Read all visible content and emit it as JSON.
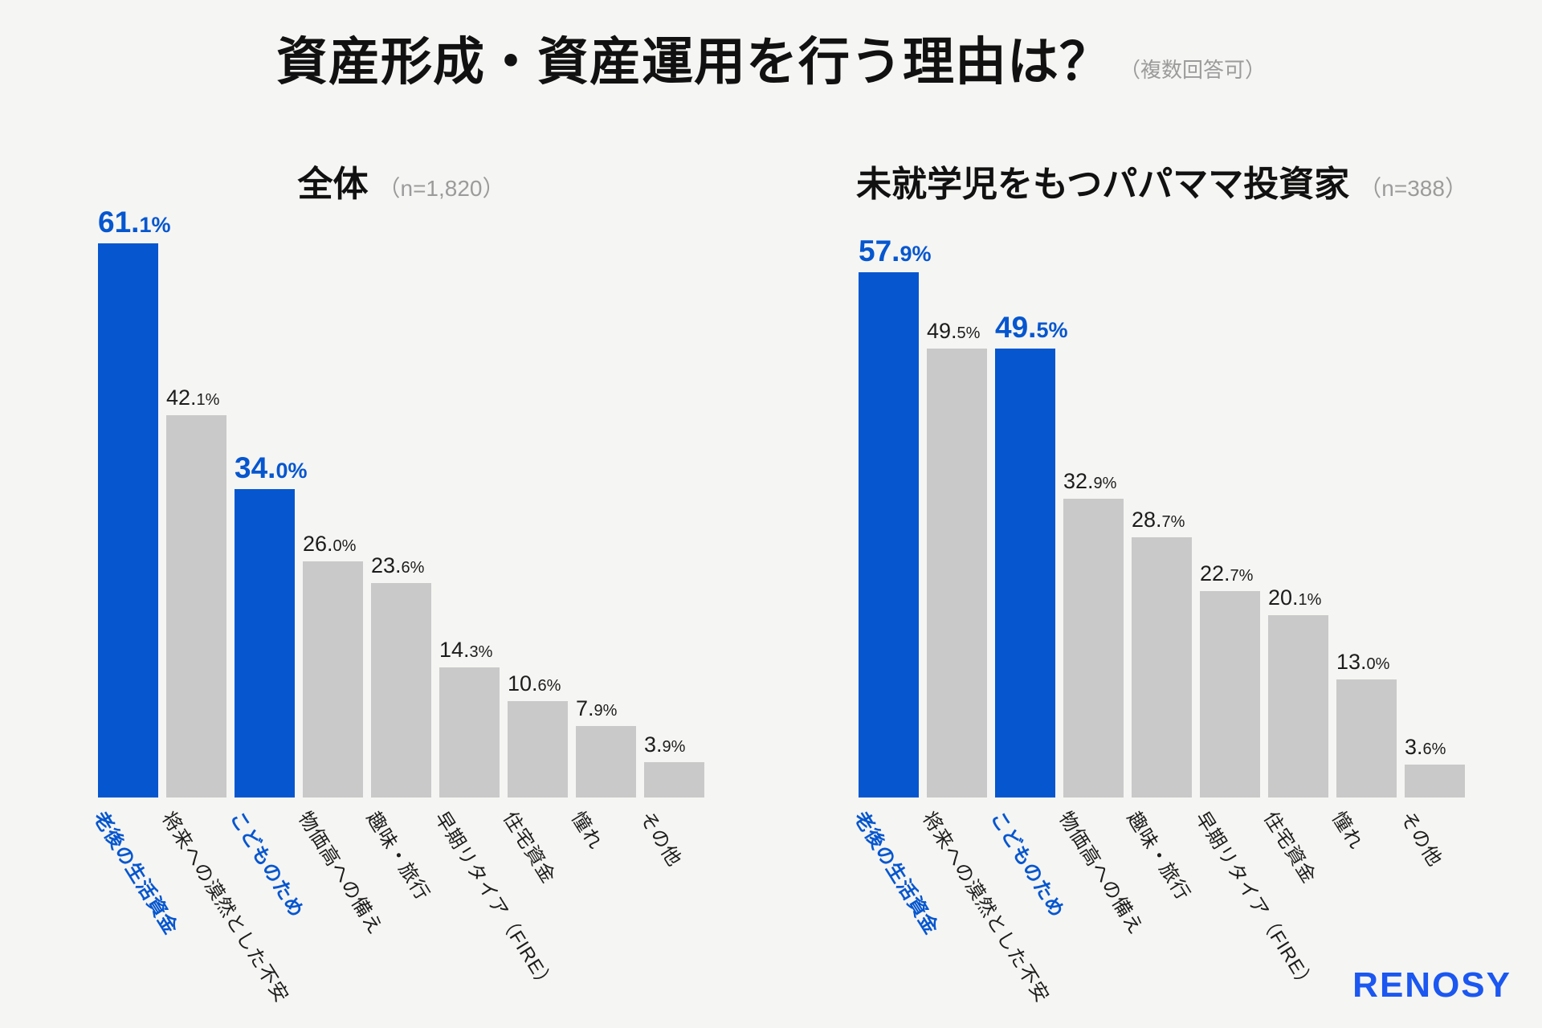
{
  "title": {
    "text": "資産形成・資産運用を行う理由は？",
    "note": "（複数回答可）"
  },
  "colors": {
    "accent": "#0556CF",
    "bar_default": "#C9C9C9",
    "logo_blue": "#1B57F0",
    "background": "#F5F5F3",
    "text": "#111111",
    "muted": "#9B9B9B"
  },
  "logo_text": "RENOSY",
  "chart_data": [
    {
      "type": "bar",
      "title": "全体",
      "sample": "（n=1,820）",
      "unit": "%",
      "categories": [
        "老後の生活資金",
        "将来への漠然とした不安",
        "こどものため",
        "物価高への備え",
        "趣味・旅行",
        "早期リタイア（FIRE）",
        "住宅資金",
        "憧れ",
        "その他"
      ],
      "values": [
        61.1,
        42.1,
        34.0,
        26.0,
        23.6,
        14.3,
        10.6,
        7.9,
        3.9
      ],
      "highlight_indexes": [
        0,
        2
      ],
      "highlighted_categories": [
        "老後の生活資金",
        "こどものため"
      ],
      "ylim": [
        0,
        65
      ],
      "grid": false,
      "legend": false
    },
    {
      "type": "bar",
      "title": "未就学児をもつパパママ投資家",
      "sample": "（n=388）",
      "unit": "%",
      "categories": [
        "老後の生活資金",
        "将来への漠然とした不安",
        "こどものため",
        "物価高への備え",
        "趣味・旅行",
        "早期リタイア（FIRE）",
        "住宅資金",
        "憧れ",
        "その他"
      ],
      "values": [
        57.9,
        49.5,
        49.5,
        32.9,
        28.7,
        22.7,
        20.1,
        13.0,
        3.6
      ],
      "highlight_indexes": [
        0,
        2
      ],
      "highlighted_categories": [
        "老後の生活資金",
        "こどものため"
      ],
      "ylim": [
        0,
        65
      ],
      "grid": false,
      "legend": false
    }
  ]
}
